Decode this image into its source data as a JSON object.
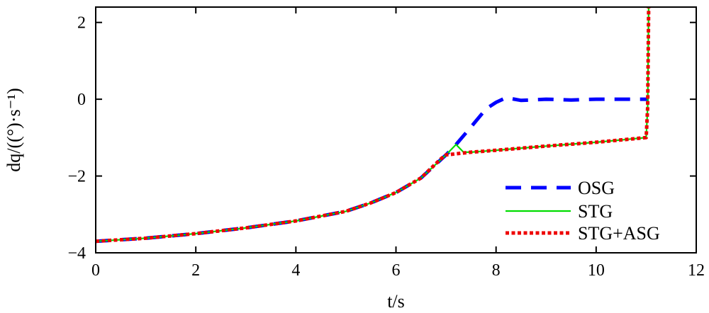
{
  "chart_data": {
    "type": "line",
    "xlabel": "t/s",
    "ylabel": "dq/((°)·s⁻¹)",
    "xlim": [
      0,
      12
    ],
    "ylim": [
      -4,
      2.4
    ],
    "xticks": [
      0,
      2,
      4,
      6,
      8,
      10,
      12
    ],
    "yticks": [
      -4,
      -2,
      0,
      2
    ],
    "xtick_labels": [
      "0",
      "2",
      "4",
      "6",
      "8",
      "10",
      "12"
    ],
    "ytick_labels": [
      "−4",
      "−2",
      "0",
      "2"
    ],
    "grid": false,
    "legend_position": "bottom-right",
    "series": [
      {
        "name": "OSG",
        "color": "#0000ff",
        "style": "dashed",
        "x": [
          0,
          1,
          2,
          3,
          4,
          5,
          5.5,
          6,
          6.5,
          7,
          7.2,
          7.5,
          7.8,
          8.0,
          8.2,
          8.5,
          9,
          9.5,
          10,
          11.05
        ],
        "y": [
          -3.7,
          -3.62,
          -3.5,
          -3.35,
          -3.17,
          -2.92,
          -2.7,
          -2.43,
          -2.05,
          -1.45,
          -1.18,
          -0.72,
          -0.25,
          -0.08,
          0.04,
          -0.03,
          0.0,
          -0.02,
          0.0,
          0.0
        ]
      },
      {
        "name": "STG",
        "color": "#00dd00",
        "style": "solid",
        "x": [
          0,
          1,
          2,
          3,
          4,
          5,
          5.5,
          6,
          6.5,
          7,
          7.2,
          7.35,
          7.5,
          8,
          9,
          10,
          11.0,
          11.03,
          11.05
        ],
        "y": [
          -3.7,
          -3.62,
          -3.5,
          -3.35,
          -3.17,
          -2.92,
          -2.7,
          -2.43,
          -2.05,
          -1.45,
          -1.18,
          -1.38,
          -1.38,
          -1.33,
          -1.22,
          -1.12,
          -1.0,
          -0.2,
          2.4
        ]
      },
      {
        "name": "STG+ASG",
        "color": "#ee0000",
        "style": "dotted",
        "x": [
          0,
          1,
          2,
          3,
          4,
          5,
          5.5,
          6,
          6.5,
          6.9,
          7.0,
          7.5,
          8,
          9,
          10,
          11.0,
          11.03,
          11.05
        ],
        "y": [
          -3.7,
          -3.62,
          -3.5,
          -3.35,
          -3.17,
          -2.92,
          -2.7,
          -2.43,
          -2.05,
          -1.55,
          -1.45,
          -1.38,
          -1.33,
          -1.22,
          -1.12,
          -1.0,
          -0.2,
          2.4
        ]
      }
    ]
  }
}
